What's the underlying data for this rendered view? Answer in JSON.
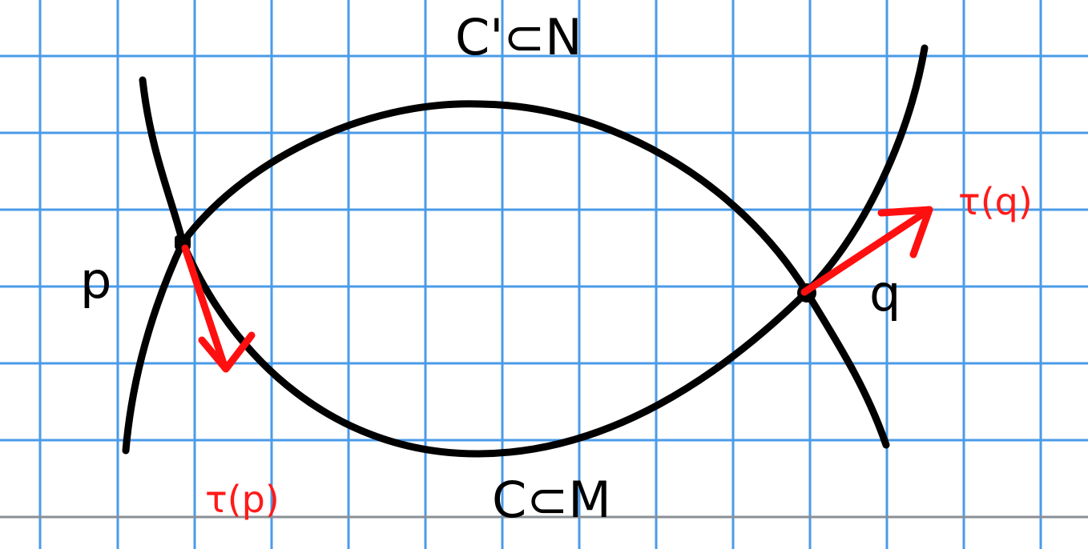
{
  "labels": {
    "curve_top": "C'⊂N",
    "curve_bottom": "C⊂M",
    "point_p": "p",
    "point_q": "q",
    "tangent_p": "τ(p)",
    "tangent_q": "τ(q)"
  },
  "colors": {
    "grid": "#4a9be8",
    "ink": "#000000",
    "vector": "#ff1010"
  }
}
